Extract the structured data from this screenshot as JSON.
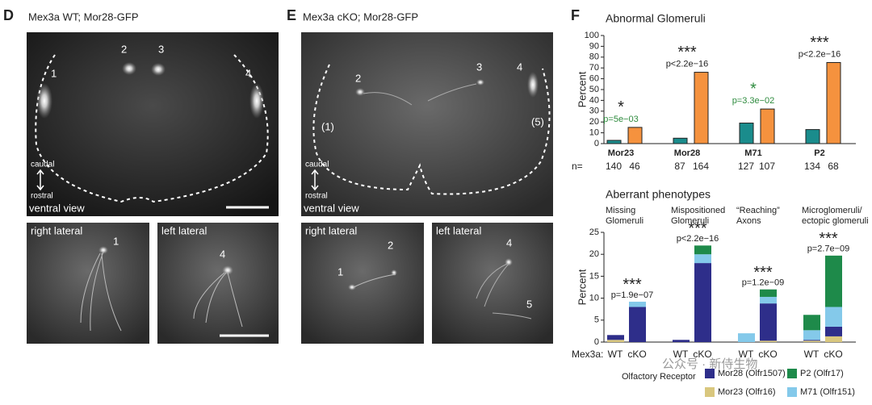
{
  "panels": {
    "D": {
      "letter": "D",
      "title": "Mex3a WT; Mor28-GFP",
      "main_labels": [
        "1",
        "2",
        "3",
        "4"
      ],
      "axis_top": "caudal",
      "axis_bottom": "rostral",
      "view": "ventral view",
      "insets": [
        {
          "title": "right lateral",
          "labels": [
            "1"
          ]
        },
        {
          "title": "left lateral",
          "labels": [
            "4"
          ]
        }
      ]
    },
    "E": {
      "letter": "E",
      "title": "Mex3a cKO; Mor28-GFP",
      "main_labels": [
        "2",
        "3",
        "4",
        "(1)",
        "(5)"
      ],
      "axis_top": "caudal",
      "axis_bottom": "rostral",
      "view": "ventral view",
      "insets": [
        {
          "title": "right lateral",
          "labels": [
            "1",
            "2"
          ]
        },
        {
          "title": "left lateral",
          "labels": [
            "4",
            "5"
          ]
        }
      ]
    },
    "F": {
      "letter": "F"
    }
  },
  "chart_data": [
    {
      "type": "bar",
      "title": "Abnormal Glomeruli",
      "y_label": "Percent",
      "categories": [
        "Mor23",
        "Mor28",
        "M71",
        "P2"
      ],
      "series": [
        {
          "color": "#1a8c8c",
          "values": [
            3,
            5,
            19,
            13
          ]
        },
        {
          "color": "#f5923e",
          "values": [
            15,
            66,
            32,
            75
          ]
        }
      ],
      "ylim": [
        0,
        100
      ],
      "yticks": [
        0,
        10,
        20,
        30,
        40,
        50,
        60,
        70,
        80,
        90,
        100
      ],
      "significance": [
        "*",
        "***",
        "*",
        "***"
      ],
      "significance_colors": [
        "#222222",
        "#222222",
        "#2e8b3e",
        "#222222"
      ],
      "p_values": [
        "p=5e−03",
        "p<2.2e−16",
        "p=3.3e−02",
        "p<2.2e−16"
      ],
      "p_value_colors": [
        "#2e8b3e",
        "#222222",
        "#2e8b3e",
        "#222222"
      ],
      "n_label": "n=",
      "n": [
        [
          140,
          46
        ],
        [
          87,
          164
        ],
        [
          127,
          107
        ],
        [
          134,
          68
        ]
      ]
    },
    {
      "type": "stacked_bar",
      "title": "Aberrant phenotypes",
      "y_label": "Percent",
      "groups": [
        [
          "Missing",
          "Glomeruli"
        ],
        [
          "Mispositioned",
          "Glomeruli"
        ],
        [
          "“Reaching”",
          "Axons"
        ],
        [
          "Microglomeruli/",
          "ectopic glomeruli"
        ]
      ],
      "categories": [
        "WT",
        "cKO",
        "WT",
        "cKO",
        "WT",
        "cKO",
        "WT",
        "cKO"
      ],
      "x_label": "Mex3a:",
      "legend_title": "Olfactory Receptor",
      "series": [
        {
          "name": "Mor23 (Olfr16)",
          "color": "#d9c77e",
          "values": [
            0.5,
            0,
            0,
            0,
            0,
            0.3,
            0.3,
            1.3
          ]
        },
        {
          "name": "Mor28 (Olfr1507)",
          "color": "#2e2e8a",
          "values": [
            1.1,
            8,
            0.5,
            18,
            0,
            8.5,
            0.2,
            2.2
          ]
        },
        {
          "name": "M71 (Olfr151)",
          "color": "#84c9ea",
          "values": [
            0,
            1.2,
            0,
            2,
            2,
            1.5,
            2.2,
            4.5
          ]
        },
        {
          "name": "P2 (Olfr17)",
          "color": "#1e8a4a",
          "values": [
            0,
            0,
            0,
            2,
            0,
            1.7,
            3.5,
            11.7
          ]
        }
      ],
      "ylim": [
        0,
        25
      ],
      "yticks": [
        0,
        5,
        10,
        15,
        20,
        25
      ],
      "significance": [
        "***",
        "***",
        "***",
        "***"
      ],
      "p_values": [
        "p=1.9e−07",
        "p<2.2e−16",
        "p=1.2e−09",
        "p=2.7e−09"
      ]
    }
  ],
  "watermark": "公众号 · 新侍生物"
}
